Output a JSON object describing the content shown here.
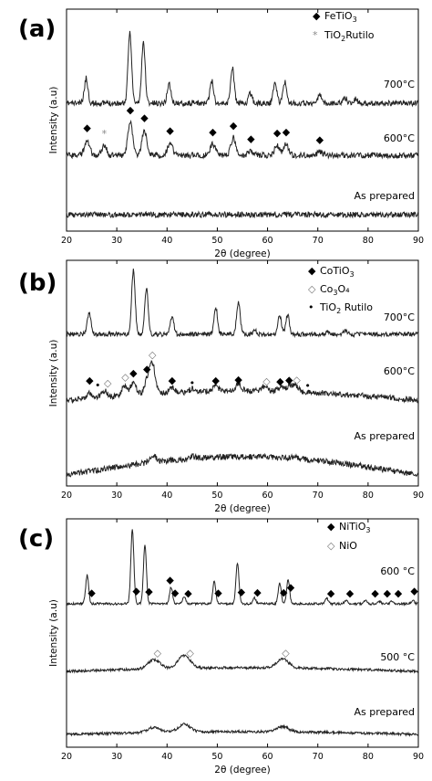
{
  "chart_data": [
    {
      "type": "line",
      "panel_label": "(a)",
      "xlabel": "2θ (degree)",
      "ylabel": "Intensity (a.u)",
      "xlim": [
        20,
        90
      ],
      "xticks": [
        "20",
        "30",
        "40",
        "50",
        "60",
        "70",
        "80",
        "90"
      ],
      "legend": [
        {
          "marker": "◆",
          "text": "FeTiO",
          "sub": "3",
          "tail": ""
        },
        {
          "marker": "*",
          "text": "TiO",
          "sub": "2",
          "tail": "Rutilo"
        }
      ],
      "series": [
        {
          "name": "700°C",
          "peaks": [
            [
              23.9,
              0.35
            ],
            [
              32.6,
              1.0
            ],
            [
              35.3,
              0.85
            ],
            [
              40.4,
              0.28
            ],
            [
              48.9,
              0.32
            ],
            [
              53.0,
              0.5
            ],
            [
              56.6,
              0.14
            ],
            [
              61.5,
              0.3
            ],
            [
              63.4,
              0.3
            ],
            [
              70.4,
              0.12
            ],
            [
              75.4,
              0.08
            ],
            [
              77.5,
              0.06
            ]
          ]
        },
        {
          "name": "600°C",
          "peaks": [
            [
              24.1,
              0.3
            ],
            [
              27.5,
              0.18
            ],
            [
              32.7,
              0.65
            ],
            [
              35.5,
              0.5
            ],
            [
              40.6,
              0.25
            ],
            [
              49.1,
              0.22
            ],
            [
              53.2,
              0.35
            ],
            [
              56.7,
              0.08
            ],
            [
              61.9,
              0.2
            ],
            [
              63.7,
              0.22
            ],
            [
              70.4,
              0.06
            ]
          ]
        },
        {
          "name": "As prepared",
          "peaks": []
        }
      ],
      "markers": [
        {
          "symbol": "◆",
          "x": [
            24.1,
            32.7,
            35.5,
            40.6,
            49.1,
            53.2,
            56.7,
            61.9,
            63.7,
            70.4
          ]
        },
        {
          "symbol": "*",
          "x": [
            27.5
          ]
        }
      ]
    },
    {
      "type": "line",
      "panel_label": "(b)",
      "xlabel": "2θ (degree)",
      "ylabel": "Intensity (a.u)",
      "xlim": [
        20,
        90
      ],
      "xticks": [
        "20",
        "30",
        "40",
        "50",
        "60",
        "70",
        "80",
        "90"
      ],
      "legend": [
        {
          "marker": "◆",
          "text": "CoTiO",
          "sub": "3",
          "tail": ""
        },
        {
          "marker": "◇",
          "text": "Co",
          "sub": "3",
          "tail": "O₄"
        },
        {
          "marker": "•",
          "text": "TiO",
          "sub": "2",
          "tail": " Rutilo"
        }
      ],
      "series": [
        {
          "name": "700°C",
          "peaks": [
            [
              24.5,
              0.35
            ],
            [
              33.3,
              1.0
            ],
            [
              35.9,
              0.72
            ],
            [
              41.0,
              0.28
            ],
            [
              49.7,
              0.42
            ],
            [
              54.2,
              0.5
            ],
            [
              57.5,
              0.06
            ],
            [
              62.4,
              0.3
            ],
            [
              64.0,
              0.3
            ],
            [
              72.0,
              0.05
            ],
            [
              75.5,
              0.05
            ]
          ]
        },
        {
          "name": "600°C",
          "peaks": [
            [
              24.6,
              0.15
            ],
            [
              27.5,
              0.18
            ],
            [
              31.5,
              0.25
            ],
            [
              33.3,
              0.35
            ],
            [
              36.0,
              0.35
            ],
            [
              37.1,
              0.8
            ],
            [
              41.0,
              0.15
            ],
            [
              45.0,
              0.08
            ],
            [
              49.7,
              0.15
            ],
            [
              54.2,
              0.18
            ],
            [
              59.5,
              0.15
            ],
            [
              62.5,
              0.12
            ],
            [
              64.3,
              0.15
            ],
            [
              65.5,
              0.18
            ]
          ]
        },
        {
          "name": "As prepared",
          "peaks": [
            [
              37.2,
              0.3
            ],
            [
              44.9,
              0.08
            ],
            [
              59.4,
              0.06
            ],
            [
              65.4,
              0.07
            ]
          ]
        }
      ],
      "markers": [
        {
          "symbol": "◆",
          "x": [
            24.6,
            33.3,
            36.0,
            41.0,
            49.7,
            54.2,
            62.5,
            64.3
          ]
        },
        {
          "symbol": "◇",
          "x": [
            28.2,
            31.7,
            37.1,
            59.8,
            65.8
          ]
        },
        {
          "symbol": "•",
          "x": [
            26.2,
            45.0,
            68.0
          ]
        }
      ]
    },
    {
      "type": "line",
      "panel_label": "(c)",
      "xlabel": "2θ (degree)",
      "ylabel": "Intensity (a.u)",
      "xlim": [
        20,
        90
      ],
      "xticks": [
        "20",
        "30",
        "40",
        "50",
        "60",
        "70",
        "80",
        "90"
      ],
      "legend": [
        {
          "marker": "◆",
          "text": "NiTiO",
          "sub": "3",
          "tail": ""
        },
        {
          "marker": "◇",
          "text": "NiO",
          "sub": "",
          "tail": ""
        }
      ],
      "series": [
        {
          "name": "600 °C",
          "peaks": [
            [
              24.1,
              0.38
            ],
            [
              33.1,
              1.0
            ],
            [
              35.6,
              0.78
            ],
            [
              40.8,
              0.22
            ],
            [
              43.4,
              0.1
            ],
            [
              49.4,
              0.3
            ],
            [
              54.0,
              0.55
            ],
            [
              57.4,
              0.08
            ],
            [
              62.4,
              0.28
            ],
            [
              64.1,
              0.32
            ],
            [
              71.8,
              0.07
            ],
            [
              75.6,
              0.05
            ],
            [
              79.5,
              0.04
            ],
            [
              82.3,
              0.03
            ],
            [
              84.8,
              0.04
            ],
            [
              88.9,
              0.05
            ]
          ]
        },
        {
          "name": "500 °C",
          "peaks": [
            [
              37.4,
              0.14
            ],
            [
              43.4,
              0.2
            ],
            [
              63.0,
              0.14
            ]
          ]
        },
        {
          "name": "As prepared",
          "peaks": [
            [
              37.4,
              0.08
            ],
            [
              43.4,
              0.12
            ],
            [
              63.0,
              0.08
            ]
          ]
        }
      ],
      "markers": [
        {
          "symbol": "◆",
          "x": [
            25.0,
            33.9,
            36.4,
            41.6,
            40.6,
            44.2,
            50.2,
            54.8,
            58.0,
            63.2,
            64.6,
            72.6,
            76.4,
            81.4,
            83.8,
            86.0,
            89.2
          ]
        },
        {
          "symbol": "◇",
          "x": [
            38.1,
            44.6,
            63.6
          ]
        }
      ]
    }
  ]
}
